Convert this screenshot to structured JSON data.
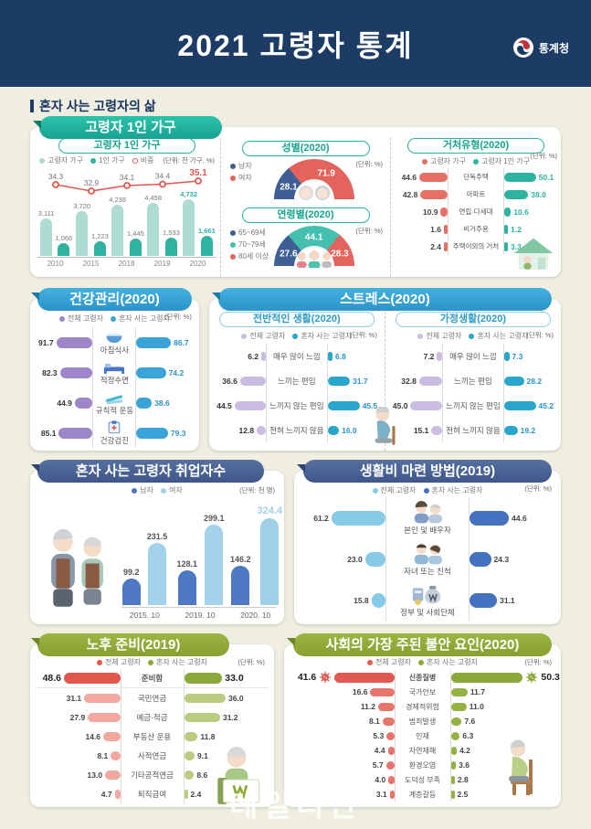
{
  "header": {
    "title": "2021 고령자 통계",
    "agency": "통계청"
  },
  "section": {
    "title": "혼자 사는 고령자의 삶"
  },
  "watermark": "데일리안",
  "panels": {
    "p1": {
      "pill": "고령자 1인 가구"
    },
    "health": {
      "pill": "건강관리(2020)"
    },
    "stress": {
      "pill": "스트레스(2020)"
    },
    "employ": {
      "pill": "혼자 사는 고령자 취업자수"
    },
    "living": {
      "pill": "생활비 마련 방법(2019)"
    },
    "prep": {
      "pill": "노후 준비(2019)"
    },
    "anxiety": {
      "pill": "사회의 가장 주된 불안 요인(2020)"
    }
  },
  "chart_data": [
    {
      "id": "hh_combo",
      "type": "bar-line",
      "title": "고령자 1인 가구",
      "unit": "(단위: 천 가구, %)",
      "categories": [
        "2010",
        "2015",
        "2018",
        "2019",
        "2020"
      ],
      "legend": [
        "고령자 가구",
        "1인 가구",
        "비중"
      ],
      "legend_colors": [
        "#aedcd2",
        "#2fb3a0",
        "#e4574e"
      ],
      "legend_ring": [
        2
      ],
      "ylim": [
        0,
        4800
      ],
      "series": [
        {
          "name": "고령자 가구",
          "color": "#aedcd2",
          "values": [
            3111,
            3720,
            4238,
            4458,
            4732
          ],
          "labels": [
            "3,111",
            "3,720",
            "4,238",
            "4,458",
            "4,732"
          ]
        },
        {
          "name": "1인 가구",
          "color": "#2fb3a0",
          "values": [
            1066,
            1223,
            1445,
            1533,
            1661
          ],
          "labels": [
            "1,066",
            "1,223",
            "1,445",
            "1,533",
            "1,661"
          ]
        },
        {
          "name": "비중",
          "type": "line",
          "color": "#e4574e",
          "values": [
            34.3,
            32.9,
            34.1,
            34.4,
            35.1
          ],
          "labels": [
            "34.3",
            "32.9",
            "34.1",
            "34.4",
            "35.1"
          ]
        }
      ]
    },
    {
      "id": "gender",
      "type": "semi-donut",
      "title": "성별(2020)",
      "unit": "(단위: %)",
      "legend": [
        "남자",
        "여자"
      ],
      "colors": [
        "#3d5f94",
        "#e4635c"
      ],
      "values": [
        28.1,
        71.9
      ],
      "labels": [
        "28.1",
        "71.9"
      ],
      "icon": "elder-couple"
    },
    {
      "id": "age",
      "type": "semi-donut",
      "title": "연령별(2020)",
      "unit": "(단위: %)",
      "legend": [
        "65~69세",
        "70~79세",
        "80세 이상"
      ],
      "colors": [
        "#3d5f94",
        "#45bfae",
        "#e4635c"
      ],
      "values": [
        27.6,
        44.1,
        28.3
      ],
      "labels": [
        "27.6",
        "44.1",
        "28.3"
      ],
      "icon": "family"
    },
    {
      "id": "dwelling",
      "type": "pairbar",
      "title": "거처유형(2020)",
      "unit": "(단위: %)",
      "legend": [
        "고령자 가구",
        "고령자 1인 가구"
      ],
      "colors": [
        "#e57166",
        "#2eb3a0"
      ],
      "value_colors": [
        "#444",
        "#2eb3a0"
      ],
      "max": 52,
      "rows": [
        {
          "label": "단독주택",
          "left": "44.6",
          "right": "50.1"
        },
        {
          "label": "아파트",
          "left": "42.8",
          "right": "38.0"
        },
        {
          "label": "연립·다세대",
          "left": "10.9",
          "right": "10.6"
        },
        {
          "label": "비거주용",
          "left": "1.6",
          "right": "1.2"
        },
        {
          "label": "주택이외의 거처",
          "left": "2.4",
          "right": "3.3"
        }
      ]
    },
    {
      "id": "health",
      "type": "pairbar",
      "title": "건강관리(2020)",
      "unit": "(단위: %)",
      "legend": [
        "전체 고령자",
        "혼자 사는 고령자"
      ],
      "colors": [
        "#9d87c8",
        "#3aa3d8"
      ],
      "value_colors": [
        "#333",
        "#2a93cc"
      ],
      "max": 92,
      "rows": [
        {
          "label": "아침식사",
          "icon": "meal",
          "left": "91.7",
          "right": "86.7"
        },
        {
          "label": "적정수면",
          "icon": "sleep",
          "left": "82.3",
          "right": "74.2"
        },
        {
          "label": "규칙적 운동",
          "icon": "exercise",
          "left": "44.9",
          "right": "38.6"
        },
        {
          "label": "건강검진",
          "icon": "checkup",
          "left": "85.1",
          "right": "79.3"
        }
      ]
    },
    {
      "id": "stress_life",
      "type": "pairbar",
      "title": "전반적인 생활(2020)",
      "unit": "(단위: %)",
      "legend": [
        "전체 고령자",
        "혼자 사는 고령자"
      ],
      "colors": [
        "#cbbce4",
        "#28a6cc"
      ],
      "value_colors": [
        "#333",
        "#2a93cc"
      ],
      "max": 47,
      "rows": [
        {
          "label": "매우 많이 느낌",
          "left": "6.2",
          "right": "6.8"
        },
        {
          "label": "느끼는 편임",
          "left": "36.6",
          "right": "31.7"
        },
        {
          "label": "느끼지 않는 편임",
          "left": "44.5",
          "right": "45.5"
        },
        {
          "label": "전혀 느끼지 않음",
          "left": "12.8",
          "right": "16.0"
        }
      ]
    },
    {
      "id": "stress_home",
      "type": "pairbar",
      "title": "가정생활(2020)",
      "unit": "(단위: %)",
      "legend": [
        "전체 고령자",
        "혼자 사는 고령자"
      ],
      "colors": [
        "#cbbce4",
        "#28a6cc"
      ],
      "value_colors": [
        "#333",
        "#2a93cc"
      ],
      "max": 47,
      "rows": [
        {
          "label": "매우 많이 느낌",
          "left": "7.2",
          "right": "7.3"
        },
        {
          "label": "느끼는 편임",
          "left": "32.8",
          "right": "28.2"
        },
        {
          "label": "느끼지 않는 편임",
          "left": "45.0",
          "right": "45.2"
        },
        {
          "label": "전혀 느끼지 않음",
          "left": "15.1",
          "right": "19.2"
        }
      ]
    },
    {
      "id": "employ",
      "type": "grouped-bar",
      "title": "혼자 사는 고령자 취업자수",
      "unit": "(단위: 천 명)",
      "legend": [
        "남자",
        "여자"
      ],
      "colors": [
        "#4d78c3",
        "#a3d2ec"
      ],
      "highlight_color": "#9fd0ea",
      "categories": [
        "2015. 10",
        "2019. 10",
        "2020. 10"
      ],
      "max": 340,
      "series": [
        {
          "name": "남자",
          "values": [
            "99.2",
            "128.1",
            "146.2"
          ]
        },
        {
          "name": "여자",
          "values": [
            "231.5",
            "299.1",
            "324.4"
          ]
        }
      ]
    },
    {
      "id": "living",
      "type": "pairbar",
      "title": "생활비 마련 방법(2019)",
      "unit": "(단위: %)",
      "legend": [
        "전체 고령자",
        "혼자 사는 고령자"
      ],
      "colors": [
        "#85cbe8",
        "#4472c0"
      ],
      "value_colors": [
        "#444",
        "#444"
      ],
      "max": 62,
      "rows": [
        {
          "label": "본인 및 배우자",
          "icon": "couple",
          "left": "61.2",
          "right": "44.6"
        },
        {
          "label": "자녀 또는 친척",
          "icon": "children",
          "left": "23.0",
          "right": "24.3"
        },
        {
          "label": "정부 및 사회단체",
          "icon": "money",
          "left": "15.8",
          "right": "31.1"
        }
      ]
    },
    {
      "id": "prep",
      "type": "pairbar",
      "title": "노후 준비(2019)",
      "unit": "(단위: %)",
      "legend": [
        "전체 고령자",
        "혼자 사는 고령자"
      ],
      "colors": [
        "#f2a89e",
        "#b9cc81"
      ],
      "bold_colors": [
        "#e2574c",
        "#8ba93a"
      ],
      "legend_colors": [
        "#e2574c",
        "#8ba93a"
      ],
      "value_colors": [
        "#444",
        "#444"
      ],
      "max": 49,
      "rows": [
        {
          "label": "준비함",
          "left": "48.6",
          "right": "33.0",
          "bold": true,
          "divider": true
        },
        {
          "label": "국민연금",
          "left": "31.1",
          "right": "36.0"
        },
        {
          "label": "예금·적금",
          "left": "27.9",
          "right": "31.2"
        },
        {
          "label": "부동산 운용",
          "left": "14.6",
          "right": "11.8"
        },
        {
          "label": "사적연금",
          "left": "8.1",
          "right": "9.1"
        },
        {
          "label": "기타공적연금",
          "left": "13.0",
          "right": "8.6"
        },
        {
          "label": "퇴직급여",
          "left": "4.7",
          "right": "2.4"
        }
      ]
    },
    {
      "id": "anxiety",
      "type": "pairbar",
      "title": "사회의 가장 주된 불안 요인(2020)",
      "unit": "(단위: %)",
      "legend": [
        "전체 고령자",
        "혼자 사는 고령자"
      ],
      "colors": [
        "#e8756b",
        "#94b23f"
      ],
      "bold_colors": [
        "#e05a50",
        "#8ba93a"
      ],
      "legend_colors": [
        "#e05a50",
        "#8ba93a"
      ],
      "value_colors": [
        "#444",
        "#444"
      ],
      "max": 51,
      "rows": [
        {
          "label": "신종질병",
          "left": "41.6",
          "right": "50.3",
          "bold": true,
          "cap": "virus"
        },
        {
          "label": "국가안보",
          "left": "16.6",
          "right": "11.7"
        },
        {
          "label": "경제적위험",
          "left": "11.2",
          "right": "11.0"
        },
        {
          "label": "범죄발생",
          "left": "8.1",
          "right": "7.6"
        },
        {
          "label": "인재",
          "left": "5.3",
          "right": "6.3"
        },
        {
          "label": "자연재해",
          "left": "4.4",
          "right": "4.2"
        },
        {
          "label": "환경오염",
          "left": "5.7",
          "right": "3.6"
        },
        {
          "label": "도덕성 부족",
          "left": "4.0",
          "right": "2.8"
        },
        {
          "label": "계층갈등",
          "left": "3.1",
          "right": "2.5"
        }
      ]
    }
  ]
}
